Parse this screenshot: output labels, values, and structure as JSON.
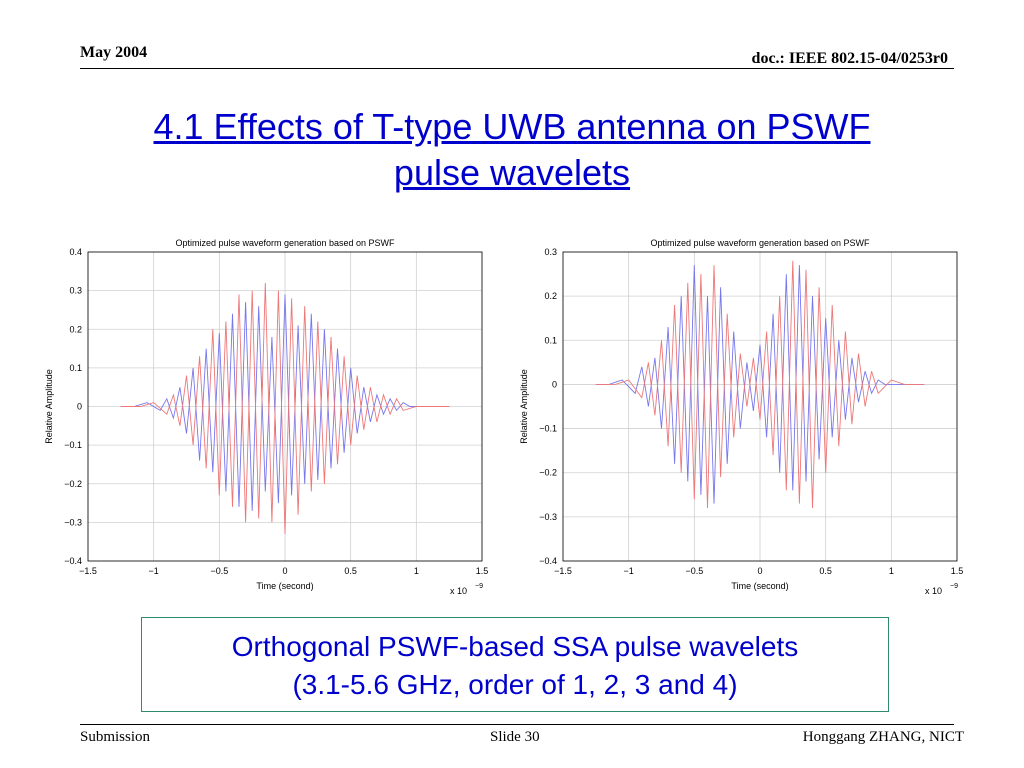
{
  "header": {
    "date": "May 2004",
    "doc": "doc.: IEEE 802.15-04/0253r0"
  },
  "slide": {
    "title_line1": "4.1 Effects of T-type UWB antenna on PSWF",
    "title_line2": "pulse wavelets"
  },
  "caption": {
    "line1": "Orthogonal PSWF-based SSA pulse wavelets",
    "line2": "(3.1-5.6 GHz, order of 1, 2, 3 and 4)"
  },
  "footer": {
    "left": "Submission",
    "center": "Slide 30",
    "right": "Honggang ZHANG, NICT"
  },
  "colors": {
    "series_blue": "#7777ee",
    "series_red": "#ee7777",
    "title_blue": "#0000cc",
    "box_border": "#2e8b6a"
  },
  "chart_data": [
    {
      "type": "line",
      "title": "Optimized pulse waveform generation based on PSWF",
      "xlabel": "Time (second)",
      "ylabel": "Relative Amplitude",
      "x_multiplier_label": "x 10",
      "x_multiplier_exp": "−9",
      "xlim": [
        -1.5,
        1.5
      ],
      "ylim": [
        -0.4,
        0.4
      ],
      "xticks": [
        -1.5,
        -1,
        -0.5,
        0,
        0.5,
        1,
        1.5
      ],
      "xtick_labels": [
        "−1.5",
        "−1",
        "−0.5",
        "0",
        "0.5",
        "1",
        "1.5"
      ],
      "yticks": [
        -0.4,
        -0.3,
        -0.2,
        -0.1,
        0,
        0.1,
        0.2,
        0.3,
        0.4
      ],
      "ytick_labels": [
        "−0.4",
        "−0.3",
        "−0.2",
        "−0.1",
        "0",
        "0.1",
        "0.2",
        "0.3",
        "0.4"
      ],
      "grid": true,
      "series": [
        {
          "color": "#7777ee",
          "x": [
            -1.25,
            -1.15,
            -1.05,
            -0.95,
            -0.9,
            -0.85,
            -0.8,
            -0.75,
            -0.7,
            -0.65,
            -0.6,
            -0.55,
            -0.5,
            -0.45,
            -0.4,
            -0.35,
            -0.3,
            -0.25,
            -0.2,
            -0.15,
            -0.1,
            -0.05,
            0,
            0.05,
            0.1,
            0.15,
            0.2,
            0.25,
            0.3,
            0.35,
            0.4,
            0.45,
            0.5,
            0.55,
            0.6,
            0.65,
            0.7,
            0.75,
            0.8,
            0.85,
            0.9,
            0.95,
            1.05,
            1.15,
            1.25
          ],
          "y": [
            0,
            0,
            0.01,
            -0.01,
            0.02,
            -0.03,
            0.05,
            -0.07,
            0.1,
            -0.14,
            0.15,
            -0.17,
            0.19,
            -0.22,
            0.24,
            -0.26,
            0.27,
            -0.27,
            0.26,
            -0.22,
            0.18,
            -0.25,
            0.29,
            -0.23,
            0.21,
            -0.2,
            0.24,
            -0.19,
            0.2,
            -0.16,
            0.15,
            -0.12,
            0.1,
            -0.07,
            0.05,
            -0.04,
            0.03,
            -0.02,
            0.02,
            -0.01,
            0.01,
            0,
            0,
            0,
            0
          ]
        },
        {
          "color": "#ee7777",
          "x": [
            -1.25,
            -1.1,
            -1.0,
            -0.9,
            -0.85,
            -0.8,
            -0.75,
            -0.7,
            -0.65,
            -0.6,
            -0.55,
            -0.5,
            -0.45,
            -0.4,
            -0.35,
            -0.3,
            -0.25,
            -0.2,
            -0.15,
            -0.1,
            -0.05,
            0,
            0.05,
            0.1,
            0.15,
            0.2,
            0.25,
            0.3,
            0.35,
            0.4,
            0.45,
            0.5,
            0.55,
            0.6,
            0.65,
            0.7,
            0.75,
            0.8,
            0.85,
            0.9,
            1.0,
            1.1,
            1.25
          ],
          "y": [
            0,
            0,
            0.01,
            -0.02,
            0.03,
            -0.05,
            0.08,
            -0.1,
            0.13,
            -0.16,
            0.2,
            -0.23,
            0.22,
            -0.26,
            0.29,
            -0.3,
            0.3,
            -0.29,
            0.32,
            -0.3,
            0.3,
            -0.33,
            0.28,
            -0.28,
            0.26,
            -0.22,
            0.22,
            -0.2,
            0.18,
            -0.15,
            0.13,
            -0.1,
            0.08,
            -0.06,
            0.05,
            -0.04,
            0.03,
            -0.02,
            0.02,
            -0.01,
            0,
            0,
            0
          ]
        }
      ]
    },
    {
      "type": "line",
      "title": "Optimized pulse waveform generation based on PSWF",
      "xlabel": "Time (second)",
      "ylabel": "Relative Amplitude",
      "x_multiplier_label": "x 10",
      "x_multiplier_exp": "−9",
      "xlim": [
        -1.5,
        1.5
      ],
      "ylim": [
        -0.4,
        0.3
      ],
      "xticks": [
        -1.5,
        -1,
        -0.5,
        0,
        0.5,
        1,
        1.5
      ],
      "xtick_labels": [
        "−1.5",
        "−1",
        "−0.5",
        "0",
        "0.5",
        "1",
        "1.5"
      ],
      "yticks": [
        -0.4,
        -0.3,
        -0.2,
        -0.1,
        0,
        0.1,
        0.2,
        0.3
      ],
      "ytick_labels": [
        "−0.4",
        "−0.3",
        "−0.2",
        "−0.1",
        "0",
        "0.1",
        "0.2",
        "0.3"
      ],
      "grid": true,
      "series": [
        {
          "color": "#7777ee",
          "x": [
            -1.25,
            -1.15,
            -1.05,
            -0.95,
            -0.9,
            -0.85,
            -0.8,
            -0.75,
            -0.7,
            -0.65,
            -0.6,
            -0.55,
            -0.5,
            -0.45,
            -0.4,
            -0.35,
            -0.3,
            -0.25,
            -0.2,
            -0.15,
            -0.1,
            -0.05,
            0,
            0.05,
            0.1,
            0.15,
            0.2,
            0.25,
            0.3,
            0.35,
            0.4,
            0.45,
            0.5,
            0.55,
            0.6,
            0.65,
            0.7,
            0.75,
            0.8,
            0.85,
            0.9,
            0.95,
            1.05,
            1.15,
            1.25
          ],
          "y": [
            0,
            0,
            0.01,
            -0.02,
            0.04,
            -0.05,
            0.06,
            -0.1,
            0.13,
            -0.18,
            0.2,
            -0.22,
            0.27,
            -0.25,
            0.2,
            -0.27,
            0.22,
            -0.18,
            0.12,
            -0.1,
            0.05,
            -0.06,
            0.09,
            -0.12,
            0.16,
            -0.2,
            0.25,
            -0.24,
            0.27,
            -0.22,
            0.2,
            -0.17,
            0.15,
            -0.12,
            0.1,
            -0.08,
            0.06,
            -0.04,
            0.03,
            -0.02,
            0.01,
            0,
            0,
            0,
            0
          ]
        },
        {
          "color": "#ee7777",
          "x": [
            -1.25,
            -1.1,
            -1.0,
            -0.9,
            -0.85,
            -0.8,
            -0.75,
            -0.7,
            -0.65,
            -0.6,
            -0.55,
            -0.5,
            -0.45,
            -0.4,
            -0.35,
            -0.3,
            -0.25,
            -0.2,
            -0.15,
            -0.1,
            -0.05,
            0,
            0.05,
            0.1,
            0.15,
            0.2,
            0.25,
            0.3,
            0.35,
            0.4,
            0.45,
            0.5,
            0.55,
            0.6,
            0.65,
            0.7,
            0.75,
            0.8,
            0.85,
            0.9,
            1.0,
            1.1,
            1.25
          ],
          "y": [
            0,
            0,
            0.01,
            -0.03,
            0.05,
            -0.07,
            0.1,
            -0.14,
            0.18,
            -0.2,
            0.23,
            -0.26,
            0.25,
            -0.28,
            0.27,
            -0.21,
            0.16,
            -0.12,
            0.07,
            -0.05,
            0.06,
            -0.08,
            0.12,
            -0.16,
            0.2,
            -0.24,
            0.28,
            -0.27,
            0.26,
            -0.28,
            0.22,
            -0.2,
            0.18,
            -0.14,
            0.12,
            -0.09,
            0.07,
            -0.05,
            0.03,
            -0.02,
            0.01,
            0,
            0
          ]
        }
      ]
    }
  ]
}
